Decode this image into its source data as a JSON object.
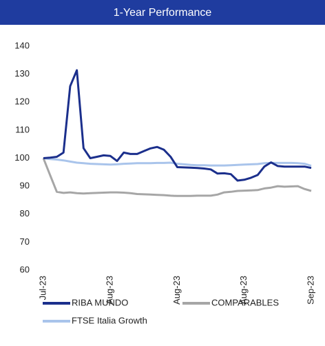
{
  "chart_data": {
    "type": "line",
    "title": "1-Year Performance",
    "categories": [
      "Jul-23",
      null,
      null,
      null,
      null,
      null,
      null,
      null,
      null,
      null,
      "Aug-23",
      null,
      null,
      null,
      null,
      null,
      null,
      null,
      null,
      null,
      "Aug-23",
      null,
      null,
      null,
      null,
      null,
      null,
      null,
      null,
      null,
      "Aug-23",
      null,
      null,
      null,
      null,
      null,
      null,
      null,
      null,
      null,
      "Sep-23"
    ],
    "series": [
      {
        "name": "RIBA MUNDO",
        "color": "#1b2f8c",
        "values": [
          100,
          100.2,
          100.5,
          102,
          125.7,
          131.4,
          103.6,
          100,
          100.5,
          101,
          100.8,
          99,
          102,
          101.5,
          101.5,
          102.5,
          103.5,
          104,
          103,
          100.5,
          96.8,
          96.7,
          96.6,
          96.5,
          96.3,
          96,
          94.5,
          94.6,
          94.3,
          92,
          92.3,
          93,
          94,
          97,
          98.5,
          97.2,
          97,
          97,
          97,
          97,
          96.5
        ]
      },
      {
        "name": "COMPARABLES",
        "color": "#a6a6a6",
        "values": [
          100,
          94,
          88,
          87.6,
          87.8,
          87.5,
          87.4,
          87.5,
          87.6,
          87.7,
          87.8,
          87.8,
          87.7,
          87.5,
          87.2,
          87.1,
          87,
          86.9,
          86.8,
          86.6,
          86.5,
          86.5,
          86.5,
          86.6,
          86.6,
          86.6,
          87,
          87.8,
          88,
          88.3,
          88.4,
          88.5,
          88.6,
          89.2,
          89.5,
          90,
          89.8,
          89.9,
          90,
          89,
          88.3
        ]
      },
      {
        "name": "FTSE Italia Growth",
        "color": "#a9c4eb",
        "values": [
          100,
          99.7,
          99.5,
          99.2,
          98.8,
          98.4,
          98.2,
          98,
          97.9,
          97.8,
          97.7,
          97.8,
          98,
          98.1,
          98.2,
          98.2,
          98.2,
          98.3,
          98.3,
          98.4,
          98,
          97.8,
          97.6,
          97.5,
          97.5,
          97.4,
          97.4,
          97.4,
          97.5,
          97.6,
          97.7,
          97.8,
          97.9,
          98.2,
          98.3,
          98.3,
          98.3,
          98.3,
          98.2,
          98,
          97.3
        ]
      }
    ],
    "ylim": [
      60,
      140
    ],
    "yticks": [
      60,
      70,
      80,
      90,
      100,
      110,
      120,
      130,
      140
    ],
    "grid": false,
    "legend": "bottom",
    "title_background": "#1f3c9f"
  }
}
